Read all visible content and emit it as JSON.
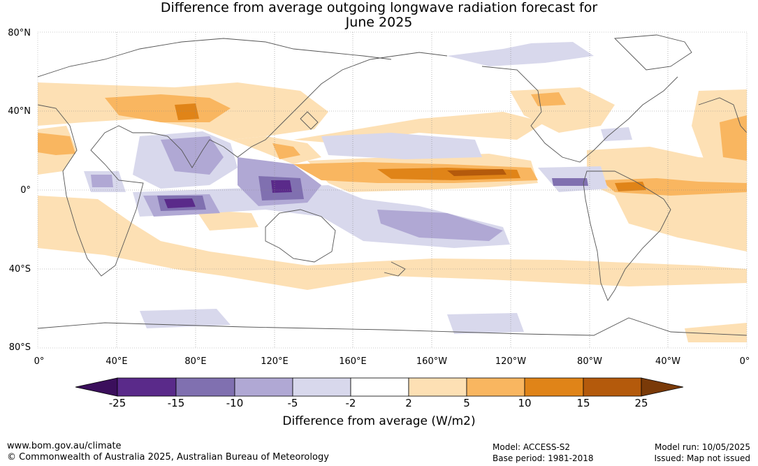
{
  "title_line1": "Difference from average outgoing longwave radiation forecast for",
  "title_line2": "June 2025",
  "lat_labels": [
    "80°N",
    "40°N",
    "0°",
    "40°S",
    "80°S"
  ],
  "lon_labels": [
    "0°",
    "40°E",
    "80°E",
    "120°E",
    "160°E",
    "160°W",
    "120°W",
    "80°W",
    "40°W",
    "0°"
  ],
  "colorbar": {
    "ticks": [
      "-25",
      "-15",
      "-10",
      "-5",
      "-2",
      "2",
      "5",
      "10",
      "15",
      "25"
    ],
    "colors": [
      "#3b0f5c",
      "#5a2a8a",
      "#8070b0",
      "#b0a8d4",
      "#d8d8ec",
      "#ffffff",
      "#fde0b4",
      "#f9b660",
      "#e08418",
      "#b45a0c",
      "#7a3a08"
    ],
    "title": "Difference from average (W/m2)"
  },
  "footer": {
    "website": "www.bom.gov.au/climate",
    "copyright": "© Commonwealth of Australia 2025, Australian Bureau of Meteorology",
    "model": "Model: ACCESS-S2",
    "base_period": "Base period: 1981-2018",
    "model_run": "Model run: 10/05/2025",
    "issued": "Issued: Map not issued"
  }
}
